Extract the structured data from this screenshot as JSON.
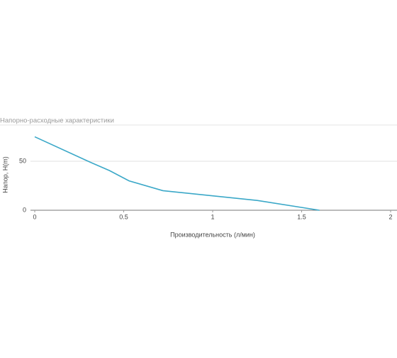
{
  "chart_data": {
    "type": "line",
    "title": "Напорно-расходные характеристики",
    "x_label": "Производительность (л/мин)",
    "y_label": "Напор, H(m)",
    "x": [
      0,
      0.3,
      0.42,
      0.53,
      0.72,
      1.25,
      1.6
    ],
    "series": [
      {
        "name": "Напор",
        "color": "#3ba8c8",
        "values": [
          75,
          50,
          40.5,
          30,
          20,
          10,
          0
        ]
      }
    ],
    "xlim": [
      0,
      2
    ],
    "xticks": [
      0,
      0.5,
      1,
      1.5,
      2
    ],
    "ylim": [
      0,
      87
    ],
    "yticks": [
      0,
      50
    ],
    "grid": true
  }
}
